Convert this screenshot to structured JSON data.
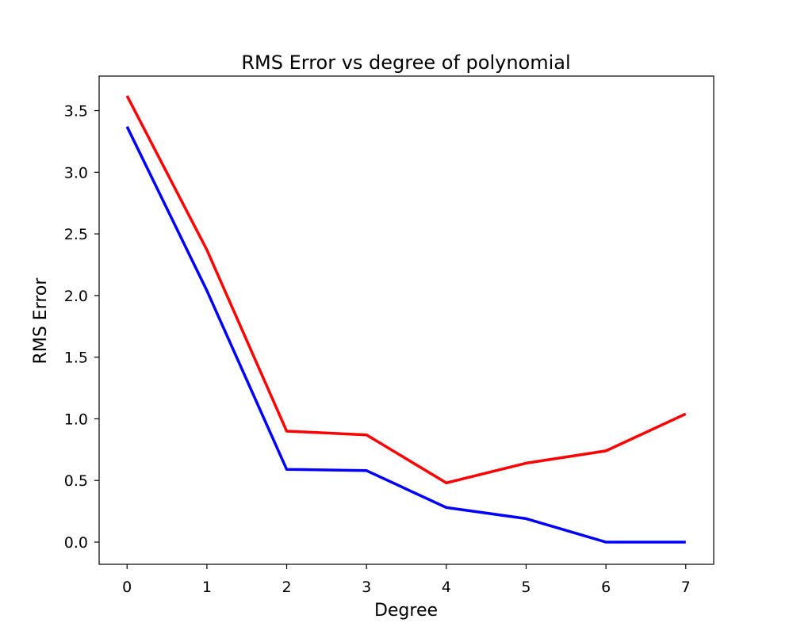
{
  "chart_data": {
    "type": "line",
    "title": "RMS Error vs degree of polynomial",
    "xlabel": "Degree",
    "ylabel": "RMS Error",
    "x": [
      0,
      1,
      2,
      3,
      4,
      5,
      6,
      7
    ],
    "xticks": [
      "0",
      "1",
      "2",
      "3",
      "4",
      "5",
      "6",
      "7"
    ],
    "yticks": [
      "0.0",
      "0.5",
      "1.0",
      "1.5",
      "2.0",
      "2.5",
      "3.0",
      "3.5"
    ],
    "xlim": [
      -0.35,
      7.35
    ],
    "ylim": [
      -0.18,
      3.78
    ],
    "grid": false,
    "series": [
      {
        "color": "#0000ff",
        "values": [
          3.37,
          2.04,
          0.59,
          0.58,
          0.28,
          0.19,
          0.0,
          0.0
        ]
      },
      {
        "color": "#ff0000",
        "values": [
          3.62,
          2.37,
          0.9,
          0.87,
          0.48,
          0.64,
          0.74,
          1.04
        ]
      }
    ]
  }
}
